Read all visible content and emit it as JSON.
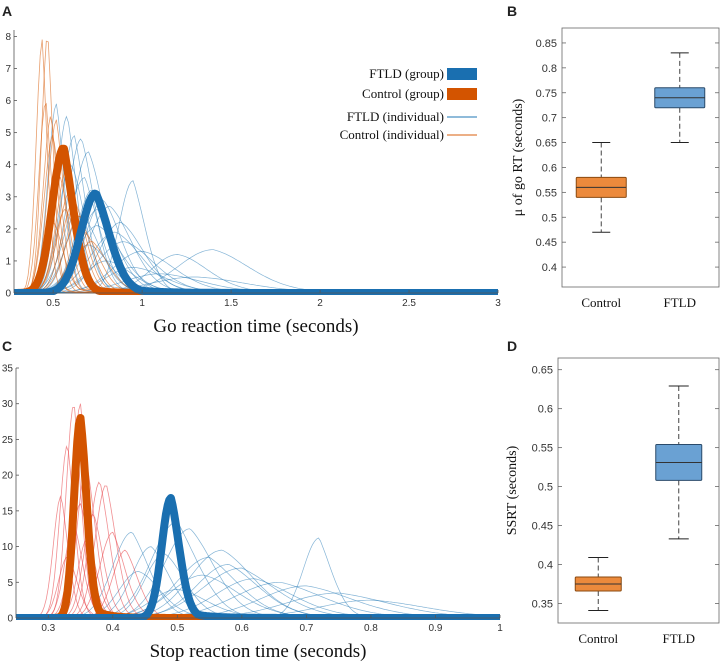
{
  "colors": {
    "ftld": "#1f77b4",
    "ftld_group": "#1a6fb0",
    "control": "#d95f0e",
    "control_group": "#d35400",
    "control_individual_c": "#e8444a",
    "box_ftld_fill": "#6aa1d3",
    "box_control_fill": "#ec8a3c"
  },
  "chart_data": [
    {
      "panel": "A",
      "type": "line",
      "title": "",
      "xlabel": "Go reaction time (seconds)",
      "ylabel": "",
      "xlim": [
        0.28,
        3.0
      ],
      "ylim": [
        0,
        8.2
      ],
      "x_ticks": [
        "0.5",
        "1",
        "1.5",
        "2",
        "2.5",
        "3"
      ],
      "y_ticks": [
        "0",
        "1",
        "2",
        "3",
        "4",
        "5",
        "6",
        "7",
        "8"
      ],
      "legend": {
        "placement": "top-right",
        "entries": [
          "FTLD (group)",
          "Control (group)",
          "FTLD (individual)",
          "Control (individual)"
        ]
      },
      "series": [
        {
          "name": "FTLD (group)",
          "kind": "exgauss",
          "params": {
            "mu": 0.74,
            "sigma": 0.085,
            "tau": 0.16,
            "peak": 3.1
          }
        },
        {
          "name": "Control (group)",
          "kind": "exgauss",
          "params": {
            "mu": 0.56,
            "sigma": 0.065,
            "tau": 0.09,
            "peak": 4.5
          }
        }
      ],
      "individual_ftld": [
        {
          "mu": 0.52,
          "sigma": 0.05,
          "tau": 0.08,
          "peak": 5.9
        },
        {
          "mu": 0.58,
          "sigma": 0.06,
          "tau": 0.1,
          "peak": 5.5
        },
        {
          "mu": 0.62,
          "sigma": 0.07,
          "tau": 0.12,
          "peak": 4.9
        },
        {
          "mu": 0.66,
          "sigma": 0.08,
          "tau": 0.15,
          "peak": 4.8
        },
        {
          "mu": 0.7,
          "sigma": 0.09,
          "tau": 0.2,
          "peak": 4.4
        },
        {
          "mu": 0.6,
          "sigma": 0.07,
          "tau": 0.3,
          "peak": 4.0
        },
        {
          "mu": 0.68,
          "sigma": 0.1,
          "tau": 0.12,
          "peak": 3.6
        },
        {
          "mu": 0.95,
          "sigma": 0.08,
          "tau": 0.12,
          "peak": 3.5
        },
        {
          "mu": 0.72,
          "sigma": 0.09,
          "tau": 0.25,
          "peak": 3.2
        },
        {
          "mu": 0.78,
          "sigma": 0.1,
          "tau": 0.3,
          "peak": 2.9
        },
        {
          "mu": 0.82,
          "sigma": 0.12,
          "tau": 0.35,
          "peak": 2.7
        },
        {
          "mu": 0.66,
          "sigma": 0.09,
          "tau": 0.5,
          "peak": 2.4
        },
        {
          "mu": 0.75,
          "sigma": 0.12,
          "tau": 0.6,
          "peak": 2.1
        },
        {
          "mu": 0.85,
          "sigma": 0.14,
          "tau": 0.5,
          "peak": 1.9
        },
        {
          "mu": 0.9,
          "sigma": 0.15,
          "tau": 0.7,
          "peak": 1.6
        },
        {
          "mu": 0.7,
          "sigma": 0.1,
          "tau": 0.8,
          "peak": 1.5
        },
        {
          "mu": 1.0,
          "sigma": 0.16,
          "tau": 0.9,
          "peak": 1.3
        },
        {
          "mu": 1.2,
          "sigma": 0.15,
          "tau": 0.9,
          "peak": 1.2
        },
        {
          "mu": 1.4,
          "sigma": 0.2,
          "tau": 0.6,
          "peak": 1.35
        },
        {
          "mu": 0.8,
          "sigma": 0.12,
          "tau": 1.2,
          "peak": 1.0
        },
        {
          "mu": 0.95,
          "sigma": 0.15,
          "tau": 1.4,
          "peak": 0.8
        },
        {
          "mu": 1.1,
          "sigma": 0.2,
          "tau": 1.6,
          "peak": 0.6
        },
        {
          "mu": 1.3,
          "sigma": 0.25,
          "tau": 1.5,
          "peak": 0.5
        },
        {
          "mu": 0.75,
          "sigma": 0.1,
          "tau": 0.4,
          "peak": 2.6
        },
        {
          "mu": 0.88,
          "sigma": 0.12,
          "tau": 0.45,
          "peak": 2.2
        }
      ],
      "individual_control": [
        {
          "mu": 0.44,
          "sigma": 0.035,
          "tau": 0.04,
          "peak": 7.9
        },
        {
          "mu": 0.47,
          "sigma": 0.035,
          "tau": 0.05,
          "peak": 7.85
        },
        {
          "mu": 0.46,
          "sigma": 0.04,
          "tau": 0.05,
          "peak": 5.9
        },
        {
          "mu": 0.49,
          "sigma": 0.045,
          "tau": 0.06,
          "peak": 5.5
        },
        {
          "mu": 0.52,
          "sigma": 0.05,
          "tau": 0.07,
          "peak": 5.4
        },
        {
          "mu": 0.5,
          "sigma": 0.05,
          "tau": 0.09,
          "peak": 4.9
        },
        {
          "mu": 0.55,
          "sigma": 0.06,
          "tau": 0.08,
          "peak": 4.4
        },
        {
          "mu": 0.58,
          "sigma": 0.06,
          "tau": 0.1,
          "peak": 3.9
        },
        {
          "mu": 0.54,
          "sigma": 0.05,
          "tau": 0.14,
          "peak": 3.6
        },
        {
          "mu": 0.6,
          "sigma": 0.07,
          "tau": 0.12,
          "peak": 3.2
        },
        {
          "mu": 0.62,
          "sigma": 0.07,
          "tau": 0.15,
          "peak": 2.9
        },
        {
          "mu": 0.57,
          "sigma": 0.06,
          "tau": 0.2,
          "peak": 2.6
        },
        {
          "mu": 0.65,
          "sigma": 0.08,
          "tau": 0.12,
          "peak": 2.4
        },
        {
          "mu": 0.5,
          "sigma": 0.05,
          "tau": 0.25,
          "peak": 2.2
        },
        {
          "mu": 0.68,
          "sigma": 0.08,
          "tau": 0.2,
          "peak": 1.9
        },
        {
          "mu": 0.72,
          "sigma": 0.09,
          "tau": 0.2,
          "peak": 1.6
        }
      ]
    },
    {
      "panel": "B",
      "type": "box",
      "title": "",
      "xlabel": "",
      "ylabel": "μ of go RT (seconds)",
      "ylim": [
        0.36,
        0.88
      ],
      "y_ticks": [
        "0.4",
        "0.45",
        "0.5",
        "0.55",
        "0.6",
        "0.65",
        "0.7",
        "0.75",
        "0.8",
        "0.85"
      ],
      "categories": [
        "Control",
        "FTLD"
      ],
      "boxes": [
        {
          "name": "Control",
          "whisker_low": 0.47,
          "q1": 0.54,
          "median": 0.56,
          "q3": 0.58,
          "whisker_high": 0.65
        },
        {
          "name": "FTLD",
          "whisker_low": 0.65,
          "q1": 0.72,
          "median": 0.74,
          "q3": 0.76,
          "whisker_high": 0.83
        }
      ]
    },
    {
      "panel": "C",
      "type": "line",
      "title": "",
      "xlabel": "Stop reaction time (seconds)",
      "ylabel": "",
      "xlim": [
        0.25,
        1.0
      ],
      "ylim": [
        0,
        35
      ],
      "x_ticks": [
        "0.3",
        "0.4",
        "0.5",
        "0.6",
        "0.7",
        "0.8",
        "0.9",
        "1"
      ],
      "y_ticks": [
        "0",
        "5",
        "10",
        "15",
        "20",
        "25",
        "30",
        "35"
      ],
      "series": [
        {
          "name": "FTLD (group)",
          "kind": "exgauss",
          "params": {
            "mu": 0.49,
            "sigma": 0.014,
            "tau": 0.03,
            "peak": 16.8
          }
        },
        {
          "name": "Control (group)",
          "kind": "exgauss",
          "params": {
            "mu": 0.35,
            "sigma": 0.01,
            "tau": 0.022,
            "peak": 28.0
          }
        }
      ],
      "individual_ftld": [
        {
          "mu": 0.43,
          "sigma": 0.03,
          "tau": 0.05,
          "peak": 12.0
        },
        {
          "mu": 0.46,
          "sigma": 0.03,
          "tau": 0.06,
          "peak": 10.0
        },
        {
          "mu": 0.5,
          "sigma": 0.04,
          "tau": 0.05,
          "peak": 13.5
        },
        {
          "mu": 0.52,
          "sigma": 0.04,
          "tau": 0.08,
          "peak": 12.5
        },
        {
          "mu": 0.48,
          "sigma": 0.03,
          "tau": 0.1,
          "peak": 9.0
        },
        {
          "mu": 0.55,
          "sigma": 0.05,
          "tau": 0.08,
          "peak": 8.5
        },
        {
          "mu": 0.58,
          "sigma": 0.05,
          "tau": 0.1,
          "peak": 7.5
        },
        {
          "mu": 0.6,
          "sigma": 0.06,
          "tau": 0.1,
          "peak": 7.0
        },
        {
          "mu": 0.44,
          "sigma": 0.03,
          "tau": 0.15,
          "peak": 6.5
        },
        {
          "mu": 0.72,
          "sigma": 0.025,
          "tau": 0.03,
          "peak": 11.2
        },
        {
          "mu": 0.62,
          "sigma": 0.06,
          "tau": 0.15,
          "peak": 5.5
        },
        {
          "mu": 0.66,
          "sigma": 0.07,
          "tau": 0.15,
          "peak": 5.0
        },
        {
          "mu": 0.7,
          "sigma": 0.07,
          "tau": 0.2,
          "peak": 4.5
        },
        {
          "mu": 0.54,
          "sigma": 0.05,
          "tau": 0.2,
          "peak": 6.0
        },
        {
          "mu": 0.75,
          "sigma": 0.08,
          "tau": 0.2,
          "peak": 3.5
        },
        {
          "mu": 0.5,
          "sigma": 0.04,
          "tau": 0.25,
          "peak": 4.0
        },
        {
          "mu": 0.8,
          "sigma": 0.08,
          "tau": 0.3,
          "peak": 2.5
        },
        {
          "mu": 0.57,
          "sigma": 0.05,
          "tau": 0.12,
          "peak": 9.5
        }
      ],
      "individual_control": [
        {
          "mu": 0.34,
          "sigma": 0.012,
          "tau": 0.02,
          "peak": 29.5
        },
        {
          "mu": 0.35,
          "sigma": 0.012,
          "tau": 0.022,
          "peak": 30.0
        },
        {
          "mu": 0.33,
          "sigma": 0.012,
          "tau": 0.02,
          "peak": 24.0
        },
        {
          "mu": 0.36,
          "sigma": 0.015,
          "tau": 0.025,
          "peak": 21.5
        },
        {
          "mu": 0.38,
          "sigma": 0.016,
          "tau": 0.03,
          "peak": 19.0
        },
        {
          "mu": 0.39,
          "sigma": 0.017,
          "tau": 0.03,
          "peak": 18.5
        },
        {
          "mu": 0.32,
          "sigma": 0.012,
          "tau": 0.02,
          "peak": 17.0
        },
        {
          "mu": 0.35,
          "sigma": 0.015,
          "tau": 0.035,
          "peak": 16.0
        },
        {
          "mu": 0.37,
          "sigma": 0.015,
          "tau": 0.04,
          "peak": 14.5
        },
        {
          "mu": 0.34,
          "sigma": 0.014,
          "tau": 0.03,
          "peak": 13.0
        },
        {
          "mu": 0.4,
          "sigma": 0.02,
          "tau": 0.04,
          "peak": 12.0
        },
        {
          "mu": 0.36,
          "sigma": 0.014,
          "tau": 0.05,
          "peak": 11.0
        },
        {
          "mu": 0.42,
          "sigma": 0.02,
          "tau": 0.04,
          "peak": 9.5
        },
        {
          "mu": 0.33,
          "sigma": 0.014,
          "tau": 0.05,
          "peak": 8.5
        }
      ]
    },
    {
      "panel": "D",
      "type": "box",
      "title": "",
      "xlabel": "",
      "ylabel": "SSRT (seconds)",
      "ylim": [
        0.325,
        0.665
      ],
      "y_ticks": [
        "0.35",
        "0.4",
        "0.45",
        "0.5",
        "0.55",
        "0.6",
        "0.65"
      ],
      "categories": [
        "Control",
        "FTLD"
      ],
      "boxes": [
        {
          "name": "Control",
          "whisker_low": 0.341,
          "q1": 0.366,
          "median": 0.375,
          "q3": 0.384,
          "whisker_high": 0.409
        },
        {
          "name": "FTLD",
          "whisker_low": 0.433,
          "q1": 0.508,
          "median": 0.531,
          "q3": 0.554,
          "whisker_high": 0.629
        }
      ]
    }
  ]
}
